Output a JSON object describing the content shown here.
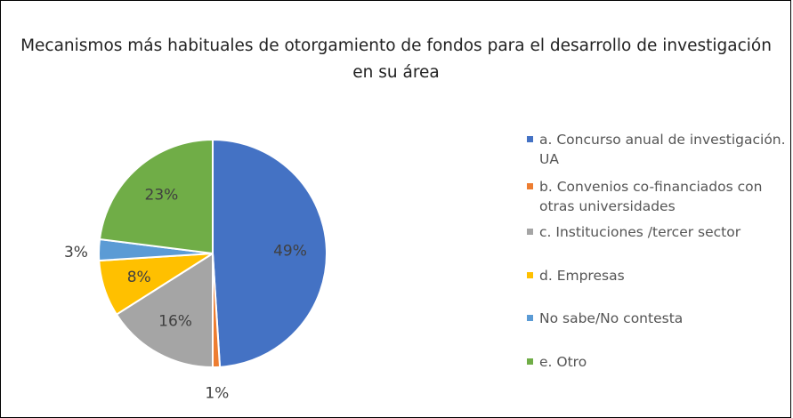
{
  "chart_data": {
    "type": "pie",
    "title": "Mecanismos más habituales de otorgamiento de fondos para el desarrollo de investigación en su área",
    "categories": [
      "a. Concurso anual de investigación. UA",
      "b. Convenios co-financiados con otras universidades",
      "c. Instituciones /tercer sector",
      "d. Empresas",
      "No sabe/No contesta",
      "e. Otro"
    ],
    "values": [
      49,
      1,
      16,
      8,
      3,
      23
    ],
    "value_labels": [
      "49%",
      "1%",
      "16%",
      "8%",
      "3%",
      "23%"
    ],
    "colors": [
      "#4472c4",
      "#ed7d31",
      "#a5a5a5",
      "#ffc000",
      "#5b9bd5",
      "#70ad47"
    ],
    "legend": "right"
  }
}
